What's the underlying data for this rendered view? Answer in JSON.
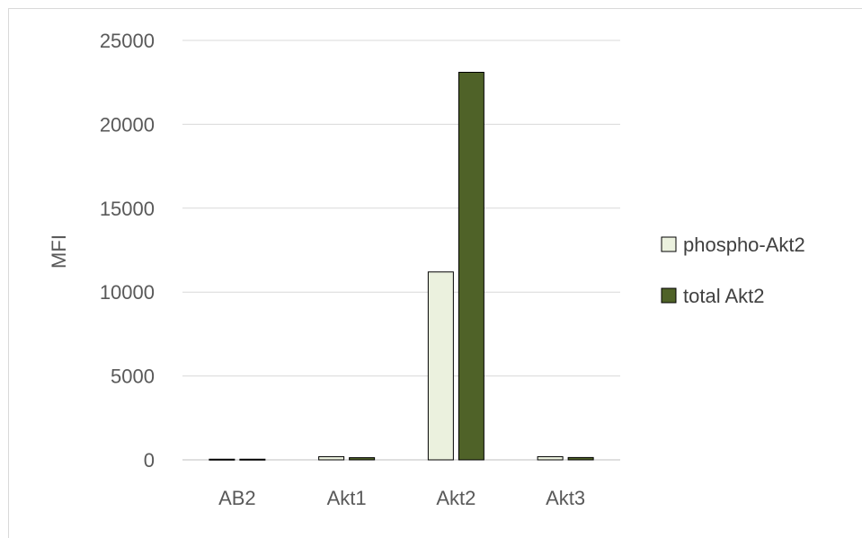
{
  "chart_data": {
    "type": "bar",
    "title": "",
    "xlabel": "",
    "ylabel": "MFI",
    "ylim": [
      0,
      25000
    ],
    "yticks": [
      "0",
      "5000",
      "10000",
      "15000",
      "20000",
      "25000"
    ],
    "categories": [
      "AB2",
      "Akt1",
      "Akt2",
      "Akt3"
    ],
    "series": [
      {
        "name": "phospho-Akt2",
        "color": "#ebf1de",
        "values": [
          40,
          190,
          11200,
          190
        ]
      },
      {
        "name": "total Akt2",
        "color": "#4f6228",
        "values": [
          40,
          130,
          23100,
          140
        ]
      }
    ],
    "grid": true,
    "legend": "right"
  }
}
